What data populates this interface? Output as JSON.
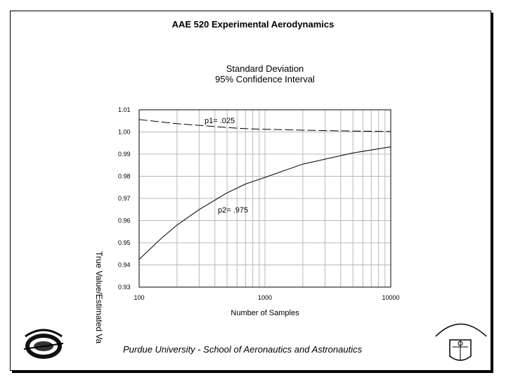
{
  "slide": {
    "header": "AAE 520 Experimental Aerodynamics",
    "footer": "Purdue University - School of Aeronautics and Astronautics",
    "logo_left_text": "Purdue University",
    "logo_right_text": "Purdue University"
  },
  "chart_data": {
    "type": "line",
    "title_line1": "Standard Deviation",
    "title_line2": "95% Confidence Interval",
    "xlabel": "Number of Samples",
    "ylabel": "True Value/Estimated Va",
    "x_scale": "log",
    "xlim": [
      100,
      10000
    ],
    "ylim": [
      0.93,
      1.01
    ],
    "x_ticks": [
      "100",
      "1000",
      "10000"
    ],
    "y_ticks": [
      "1.01",
      "1.00",
      "0.99",
      "0.98",
      "0.97",
      "0.96",
      "0.95",
      "0.94",
      "0.93"
    ],
    "grid": true,
    "series": [
      {
        "name": "p1= .025",
        "x": [
          100,
          150,
          200,
          300,
          500,
          700,
          1000,
          2000,
          5000,
          10000
        ],
        "y": [
          1.0056,
          1.0045,
          1.0037,
          1.003,
          1.002,
          1.0015,
          1.0012,
          1.0008,
          1.0004,
          1.0002
        ]
      },
      {
        "name": "p2= .975",
        "x": [
          100,
          150,
          200,
          300,
          500,
          700,
          1000,
          2000,
          5000,
          10000
        ],
        "y": [
          0.9425,
          0.952,
          0.958,
          0.965,
          0.9725,
          0.9765,
          0.9795,
          0.9855,
          0.9905,
          0.9933
        ]
      }
    ],
    "annotations": [
      {
        "text": "p1= .025",
        "series": 0
      },
      {
        "text": "p2= .975",
        "series": 1
      }
    ]
  }
}
